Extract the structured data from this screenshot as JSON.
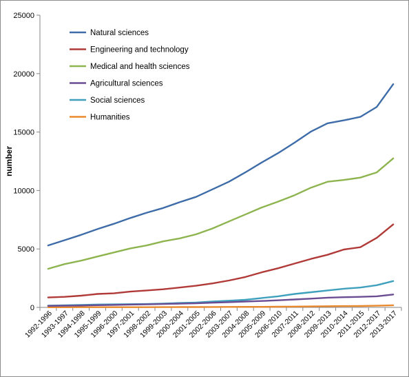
{
  "chart_data": {
    "type": "line",
    "title": "",
    "xlabel": "",
    "ylabel": "number",
    "ylim": [
      0,
      25000
    ],
    "yticks": [
      0,
      5000,
      10000,
      15000,
      20000,
      25000
    ],
    "ytick_labels": [
      "0",
      "5000",
      "10000",
      "15000",
      "20000",
      "25000"
    ],
    "grid": false,
    "legend_position": "top-left",
    "categories": [
      "1992-1996",
      "1993-1997",
      "1994-1998",
      "1995-1999",
      "1996-2000",
      "1997-2001",
      "1998-2002",
      "1999-2003",
      "2000-2004",
      "2001-2005",
      "2002-2006",
      "2003-2007",
      "2004-2008",
      "2005-2009",
      "2006-2010",
      "2007-2011",
      "2008-2012",
      "2009-2013",
      "2010-2014",
      "2011-2015",
      "2012-2017",
      "2013-2017"
    ],
    "series": [
      {
        "name": "Natural sciences",
        "color": "#3d6ca8",
        "values": [
          5300,
          5750,
          6200,
          6700,
          7150,
          7650,
          8100,
          8500,
          9000,
          9450,
          10100,
          10750,
          11550,
          12400,
          13200,
          14100,
          15050,
          15750,
          16000,
          16300,
          17150,
          19100
        ]
      },
      {
        "name": "Engineering and technology",
        "color": "#b03a37",
        "values": [
          850,
          900,
          1000,
          1150,
          1200,
          1350,
          1450,
          1550,
          1700,
          1850,
          2050,
          2300,
          2600,
          3000,
          3350,
          3750,
          4150,
          4500,
          4950,
          5150,
          5950,
          7100
        ]
      },
      {
        "name": "Medical and health sciences",
        "color": "#8db44e",
        "values": [
          3300,
          3700,
          4000,
          4350,
          4700,
          5050,
          5300,
          5650,
          5900,
          6250,
          6750,
          7350,
          7950,
          8550,
          9050,
          9600,
          10250,
          10750,
          10900,
          11100,
          11550,
          12750
        ]
      },
      {
        "name": "Agricultural sciences",
        "color": "#6a4c93",
        "values": [
          130,
          140,
          160,
          190,
          210,
          240,
          260,
          290,
          320,
          350,
          400,
          450,
          500,
          550,
          610,
          680,
          750,
          830,
          870,
          900,
          950,
          1100
        ]
      },
      {
        "name": "Social sciences",
        "color": "#3ea0bd",
        "values": [
          150,
          180,
          210,
          250,
          260,
          280,
          290,
          330,
          380,
          420,
          500,
          570,
          650,
          800,
          950,
          1150,
          1300,
          1450,
          1600,
          1700,
          1900,
          2250
        ]
      },
      {
        "name": "Humanities",
        "color": "#e8892e",
        "values": [
          10,
          10,
          15,
          15,
          20,
          20,
          20,
          25,
          30,
          30,
          35,
          40,
          45,
          50,
          60,
          70,
          80,
          100,
          110,
          120,
          140,
          180
        ]
      }
    ]
  }
}
